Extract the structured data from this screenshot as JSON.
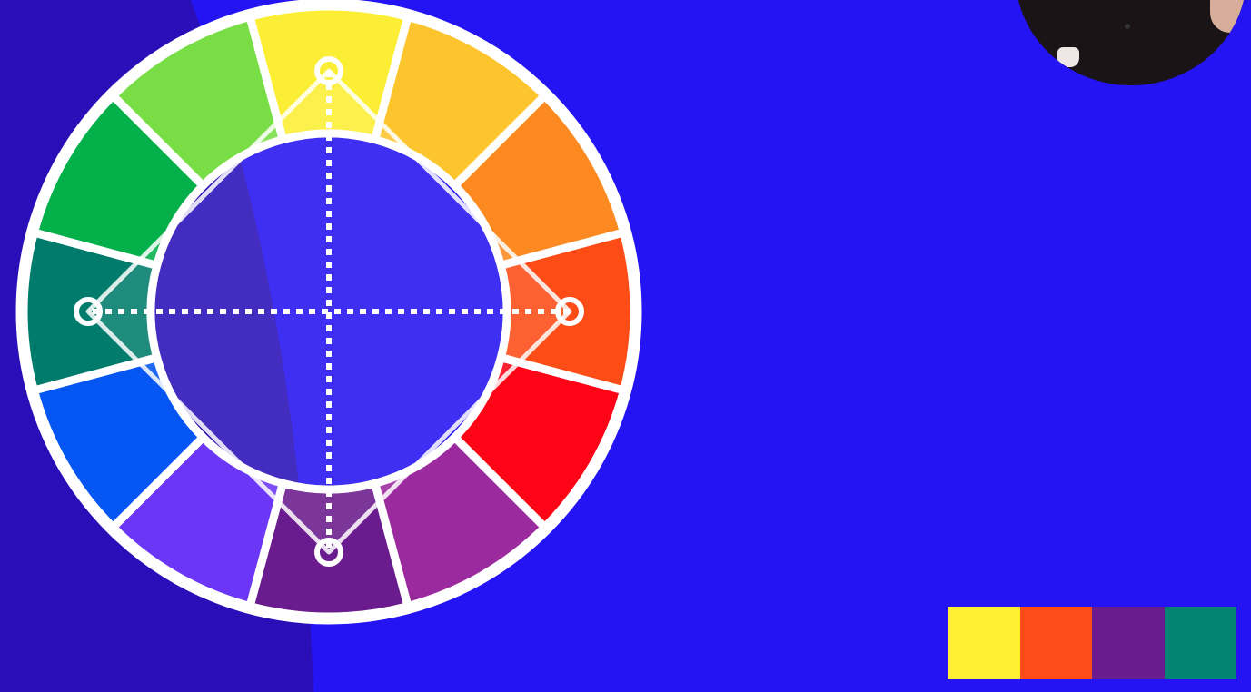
{
  "colors": {
    "background": "#2413f2",
    "background_shadow": "#2a0fb8",
    "stroke": "#ffffff"
  },
  "wheel": {
    "segments": [
      {
        "hue": "yellow",
        "color": "#fbee34"
      },
      {
        "hue": "yellow-orange",
        "color": "#fdc52d"
      },
      {
        "hue": "orange",
        "color": "#fd8a21"
      },
      {
        "hue": "red-orange",
        "color": "#fd4c16"
      },
      {
        "hue": "red",
        "color": "#fd0417"
      },
      {
        "hue": "red-violet",
        "color": "#9c2a9f"
      },
      {
        "hue": "violet",
        "color": "#6a1b8d"
      },
      {
        "hue": "blue-violet",
        "color": "#6b36f5"
      },
      {
        "hue": "blue",
        "color": "#0556f2"
      },
      {
        "hue": "blue-green",
        "color": "#017c6c"
      },
      {
        "hue": "green",
        "color": "#03b04a"
      },
      {
        "hue": "yellow-green",
        "color": "#79de45"
      }
    ],
    "scheme": "tetradic-square",
    "selected_hues": [
      "yellow",
      "red-orange",
      "violet",
      "blue-green"
    ]
  },
  "palette": [
    {
      "hue": "yellow",
      "color": "#fdf032"
    },
    {
      "hue": "red-orange",
      "color": "#fd4c18"
    },
    {
      "hue": "violet",
      "color": "#6a1b8d"
    },
    {
      "hue": "blue-green",
      "color": "#038473"
    }
  ],
  "webcam": {
    "icon": "presenter-webcam-icon"
  }
}
